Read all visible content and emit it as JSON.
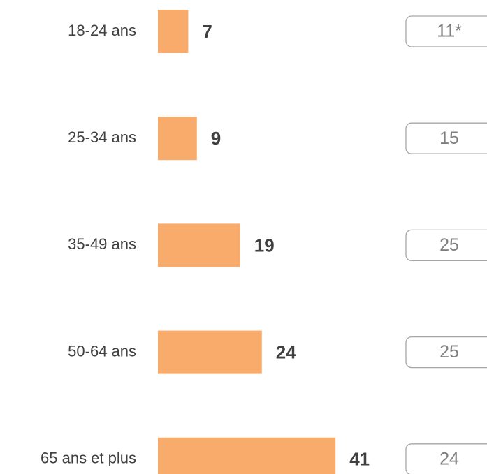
{
  "chart_data": {
    "type": "bar",
    "orientation": "horizontal",
    "categories": [
      "18-24 ans",
      "25-34 ans",
      "35-49 ans",
      "50-64 ans",
      "65 ans et plus"
    ],
    "series": [
      {
        "color": "#f8ab6b",
        "values": [
          7,
          9,
          19,
          24,
          41
        ]
      },
      {
        "values": [
          11,
          15,
          25,
          25,
          24
        ],
        "value_labels": [
          "11*",
          "15",
          "25",
          "25",
          "24"
        ]
      }
    ]
  }
}
